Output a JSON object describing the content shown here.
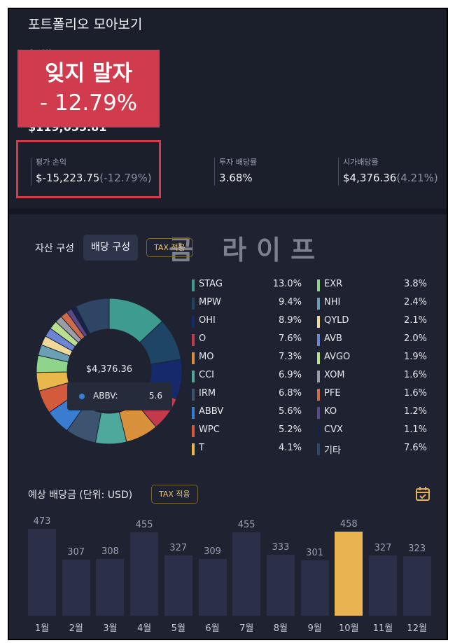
{
  "header": {
    "title": "포트폴리오 모아보기",
    "small_label": "총 자산",
    "asset_total": "$119,055.81"
  },
  "banner": {
    "line1": "잊지 말자",
    "line2": "- 12.79%"
  },
  "stats": [
    {
      "label": "평가 손익",
      "value": "$-15,223.75",
      "sub": "(-12.79%)"
    },
    {
      "label": "투자 배당률",
      "value": "3.68%",
      "sub": ""
    },
    {
      "label": "시가배당률",
      "value": "$4,376.36",
      "sub": "(4.21%)"
    }
  ],
  "watermark": "곰 라이프",
  "tabs": {
    "asset": "자산 구성",
    "dividend": "배당 구성",
    "tax": "TAX 적용"
  },
  "donut": {
    "center_label": "$4,376.36",
    "tooltip_name": "ABBV:",
    "tooltip_value": "5.6"
  },
  "holdings": [
    {
      "name": "STAG",
      "pct": "13.0%",
      "value": 13.0,
      "color": "#3d9c8f"
    },
    {
      "name": "MPW",
      "pct": "9.4%",
      "value": 9.4,
      "color": "#1f4566"
    },
    {
      "name": "OHI",
      "pct": "8.9%",
      "value": 8.9,
      "color": "#162a6b"
    },
    {
      "name": "O",
      "pct": "7.6%",
      "value": 7.6,
      "color": "#c23a4c"
    },
    {
      "name": "MO",
      "pct": "7.3%",
      "value": 7.3,
      "color": "#d9903a"
    },
    {
      "name": "CCI",
      "pct": "6.9%",
      "value": 6.9,
      "color": "#4fa89c"
    },
    {
      "name": "IRM",
      "pct": "6.8%",
      "value": 6.8,
      "color": "#3c5470"
    },
    {
      "name": "ABBV",
      "pct": "5.6%",
      "value": 5.6,
      "color": "#3a7ccf"
    },
    {
      "name": "WPC",
      "pct": "5.2%",
      "value": 5.2,
      "color": "#d45a3c"
    },
    {
      "name": "T",
      "pct": "4.1%",
      "value": 4.1,
      "color": "#e9b84a"
    },
    {
      "name": "EXR",
      "pct": "3.8%",
      "value": 3.8,
      "color": "#8ed48a"
    },
    {
      "name": "NHI",
      "pct": "2.4%",
      "value": 2.4,
      "color": "#6aa0b4"
    },
    {
      "name": "QYLD",
      "pct": "2.1%",
      "value": 2.1,
      "color": "#efd99a"
    },
    {
      "name": "AVB",
      "pct": "2.0%",
      "value": 2.0,
      "color": "#6b84d6"
    },
    {
      "name": "AVGO",
      "pct": "1.9%",
      "value": 1.9,
      "color": "#b9e08e"
    },
    {
      "name": "XOM",
      "pct": "1.6%",
      "value": 1.6,
      "color": "#9a9da6"
    },
    {
      "name": "PFE",
      "pct": "1.6%",
      "value": 1.6,
      "color": "#cf6a4a"
    },
    {
      "name": "KO",
      "pct": "1.2%",
      "value": 1.2,
      "color": "#5b4a8a"
    },
    {
      "name": "CVX",
      "pct": "1.1%",
      "value": 1.1,
      "color": "#16224a"
    },
    {
      "name": "기타",
      "pct": "7.6%",
      "value": 7.6,
      "color": "#2f4566"
    }
  ],
  "dividends": {
    "title": "예상 배당금 (단위: USD)",
    "tax_label": "TAX 적용",
    "highlight_color": "#e9b350",
    "bar_color": "#2b3048"
  },
  "chart_data": {
    "type": "bar",
    "categories": [
      "1월",
      "2월",
      "3월",
      "4월",
      "5월",
      "6월",
      "7월",
      "8월",
      "9월",
      "10월",
      "11월",
      "12월"
    ],
    "values": [
      473,
      307,
      308,
      455,
      327,
      309,
      455,
      333,
      301,
      458,
      327,
      323
    ],
    "highlight_index": 9
  }
}
